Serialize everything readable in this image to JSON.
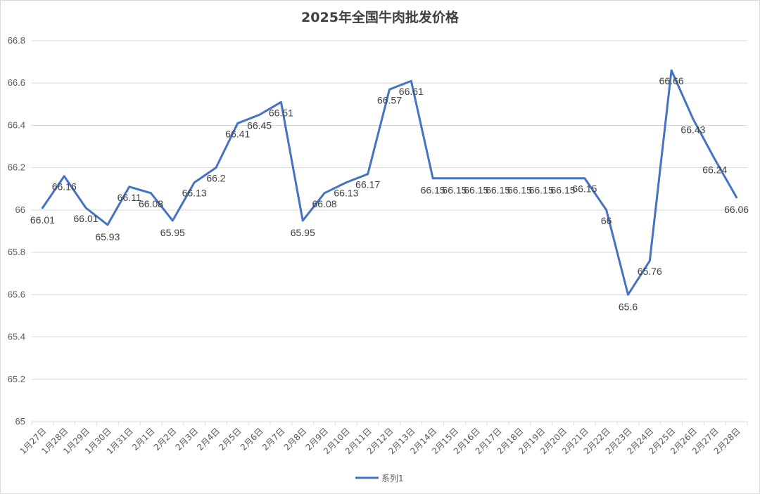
{
  "chart_data": {
    "type": "line",
    "title": "2025年全国牛肉批发价格",
    "xlabel": "",
    "ylabel": "",
    "ylim": [
      65,
      66.8
    ],
    "yticks": [
      "66.8",
      "66.6",
      "66.4",
      "66.2",
      "66",
      "65.8",
      "65.6",
      "65.4",
      "65.2",
      "65"
    ],
    "grid": true,
    "legend_position": "bottom",
    "categories": [
      "1月27日",
      "1月28日",
      "1月29日",
      "1月30日",
      "1月31日",
      "2月1日",
      "2月2日",
      "2月3日",
      "2月4日",
      "2月5日",
      "2月6日",
      "2月7日",
      "2月8日",
      "2月9日",
      "2月10日",
      "2月11日",
      "2月12日",
      "2月13日",
      "2月14日",
      "2月15日",
      "2月16日",
      "2月17日",
      "2月18日",
      "2月19日",
      "2月20日",
      "2月21日",
      "2月22日",
      "2月23日",
      "2月24日",
      "2月25日",
      "2月26日",
      "2月27日",
      "2月28日"
    ],
    "series": [
      {
        "name": "系列1",
        "color": "#4472c4",
        "values": [
          66.01,
          66.16,
          66.01,
          65.93,
          66.11,
          66.08,
          65.95,
          66.13,
          66.2,
          66.41,
          66.45,
          66.51,
          65.95,
          66.08,
          66.13,
          66.17,
          66.57,
          66.61,
          66.15,
          66.15,
          66.15,
          66.15,
          66.15,
          66.15,
          66.15,
          66.15,
          66,
          65.6,
          65.76,
          66.66,
          66.43,
          66.24,
          66.06
        ],
        "labels": [
          "66.01",
          "66.16",
          "66.01",
          "65.93",
          "66.11",
          "66.08",
          "65.95",
          "66.13",
          "66.2",
          "66.41",
          "66.45",
          "66.51",
          "65.95",
          "66.08",
          "66.13",
          "66.17",
          "66.57",
          "66.61",
          "66.15",
          "66.15",
          "66.15",
          "66.15",
          "66.15",
          "66.15",
          "66.15",
          "66.15",
          "66",
          "65.6",
          "65.76",
          "66.66",
          "66.43",
          "66.24",
          "66.06"
        ]
      }
    ]
  }
}
